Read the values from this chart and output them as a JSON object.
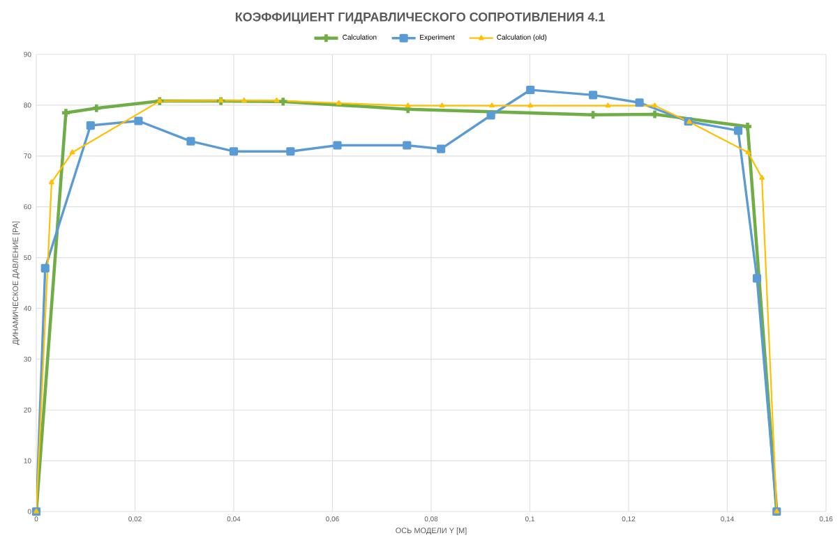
{
  "chart_data": {
    "type": "line",
    "title": "КОЭФФИЦИЕНТ ГИДРАВЛИЧЕСКОГО СОПРОТИВЛЕНИЯ 4.1",
    "xlabel": "ОСЬ МОДЕЛИ Y [M]",
    "ylabel": "ДИНАМИЧЕСКОЕ ДАВЛЕНИЕ [PA]",
    "xlim": [
      0,
      0.16
    ],
    "ylim": [
      0,
      90
    ],
    "xticks": [
      0,
      {
        "value": 0.02,
        "label": "0,02"
      },
      {
        "value": 0.04,
        "label": "0,04"
      },
      {
        "value": 0.06,
        "label": "0,06"
      },
      {
        "value": 0.08,
        "label": "0,08"
      },
      {
        "value": 0.1,
        "label": "0,1"
      },
      {
        "value": 0.12,
        "label": "0,12"
      },
      {
        "value": 0.14,
        "label": "0,14"
      },
      {
        "value": 0.16,
        "label": "0,16"
      }
    ],
    "yticks": [
      0,
      10,
      20,
      30,
      40,
      50,
      60,
      70,
      80,
      90
    ],
    "grid": true,
    "legend": "top",
    "series": [
      {
        "name": "Calculation",
        "color": "#70ad47",
        "marker": "cross",
        "x": [
          0,
          0.006,
          0.0122,
          0.025,
          0.0374,
          0.05,
          0.0753,
          0.1128,
          0.1253,
          0.1441,
          0.15
        ],
        "values": [
          0,
          78.5,
          79.4,
          80.8,
          80.8,
          80.7,
          79.2,
          78.1,
          78.2,
          75.8,
          0
        ]
      },
      {
        "name": "Experiment",
        "color": "#5b9bd5",
        "marker": "square",
        "x": [
          0,
          0.0018,
          0.011,
          0.0207,
          0.0313,
          0.04,
          0.0515,
          0.061,
          0.0751,
          0.082,
          0.0921,
          0.1001,
          0.1128,
          0.1222,
          0.1321,
          0.1422,
          0.146,
          0.15
        ],
        "values": [
          0,
          47.9,
          76.0,
          76.9,
          72.9,
          70.9,
          70.9,
          72.1,
          72.1,
          71.4,
          78.0,
          83.0,
          82.0,
          80.5,
          76.8,
          75.0,
          45.9,
          0
        ]
      },
      {
        "name": "Calculation (old)",
        "color": "#ffc000",
        "marker": "triangle",
        "x": [
          0,
          0.0031,
          0.0073,
          0.025,
          0.0374,
          0.0421,
          0.0487,
          0.0613,
          0.0753,
          0.0822,
          0.0923,
          0.1001,
          0.1158,
          0.1253,
          0.1323,
          0.1442,
          0.147,
          0.15
        ],
        "values": [
          0,
          64.8,
          70.7,
          80.8,
          80.9,
          80.9,
          80.9,
          80.4,
          79.9,
          79.9,
          79.9,
          79.9,
          79.9,
          79.9,
          76.7,
          70.7,
          65.7,
          0
        ]
      }
    ]
  }
}
